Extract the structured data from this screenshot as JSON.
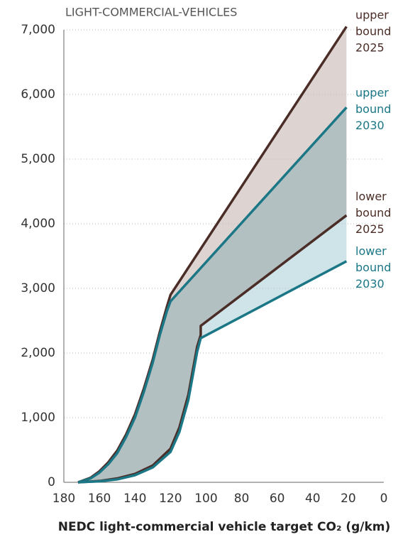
{
  "chart_data": {
    "type": "line",
    "title": "LIGHT-COMMERCIAL-VEHICLES",
    "x_label": "NEDC light-commercial vehicle target CO₂ (g/km)",
    "xlim": [
      180,
      0
    ],
    "xticks": [
      180,
      160,
      140,
      120,
      100,
      80,
      60,
      40,
      20,
      0
    ],
    "ylim": [
      0,
      7000
    ],
    "yticks": [
      0,
      {
        "value": 1000,
        "label": "1,000"
      },
      {
        "value": 2000,
        "label": "2,000"
      },
      {
        "value": 3000,
        "label": "3,000"
      },
      {
        "value": 4000,
        "label": "4,000"
      },
      {
        "value": 5000,
        "label": "5,000"
      },
      {
        "value": 6000,
        "label": "6,000"
      },
      {
        "value": 7000,
        "label": "7,000"
      }
    ],
    "grid": true,
    "series": [
      {
        "name": "upper bound 2025",
        "color": "#4b2d27",
        "x": [
          172,
          165,
          160,
          155,
          150,
          145,
          140,
          135,
          130,
          126,
          122,
          120,
          21
        ],
        "values": [
          0,
          70,
          170,
          310,
          490,
          740,
          1050,
          1450,
          1900,
          2330,
          2720,
          2900,
          7050
        ]
      },
      {
        "name": "upper bound 2030",
        "color": "#1b7786",
        "x": [
          172,
          165,
          160,
          155,
          150,
          145,
          140,
          135,
          130,
          126,
          122,
          120,
          21
        ],
        "values": [
          0,
          60,
          150,
          280,
          450,
          700,
          1000,
          1400,
          1850,
          2280,
          2650,
          2800,
          5800
        ]
      },
      {
        "name": "lower bound 2025",
        "color": "#4b2d27",
        "x": [
          172,
          160,
          150,
          140,
          130,
          120,
          115,
          110,
          107,
          105,
          103,
          103,
          21
        ],
        "values": [
          0,
          20,
          60,
          130,
          260,
          520,
          850,
          1350,
          1800,
          2100,
          2280,
          2420,
          4130
        ]
      },
      {
        "name": "lower bound 2030",
        "color": "#1b7786",
        "x": [
          172,
          160,
          150,
          140,
          130,
          120,
          115,
          110,
          107,
          105,
          103,
          21
        ],
        "values": [
          0,
          15,
          45,
          110,
          230,
          470,
          780,
          1270,
          1720,
          2020,
          2230,
          3420
        ]
      }
    ]
  }
}
